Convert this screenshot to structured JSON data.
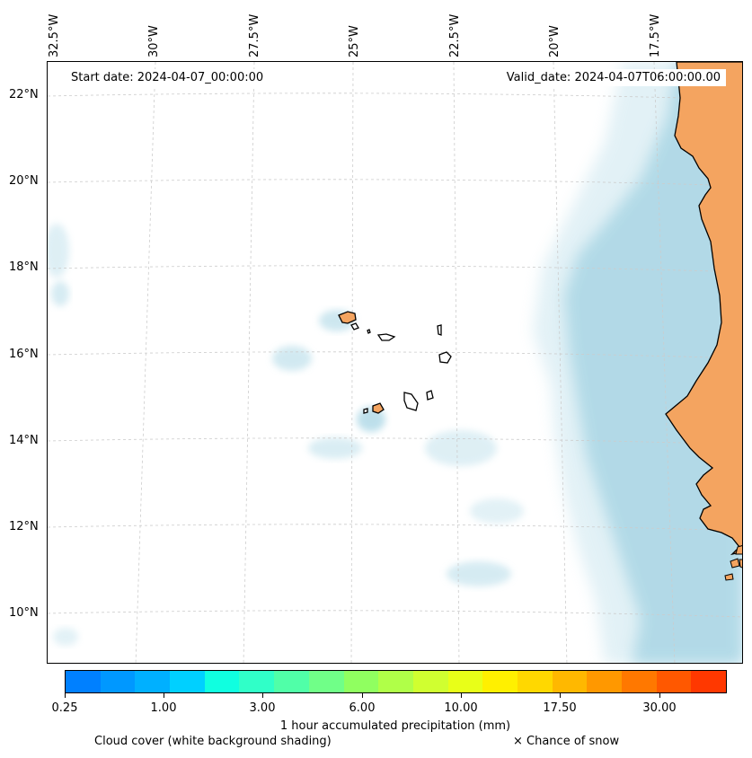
{
  "map": {
    "start_date": "Start date: 2024-04-07_00:00:00",
    "valid_date": "Valid_date: 2024-04-07T06:00:00.00",
    "longitude_labels": [
      "32.5°W",
      "30°W",
      "27.5°W",
      "25°W",
      "22.5°W",
      "20°W",
      "17.5°W"
    ],
    "latitude_labels": [
      "22°N",
      "20°N",
      "18°N",
      "16°N",
      "14°N",
      "12°N",
      "10°N"
    ],
    "region": "Cabo Verde islands and West African coast"
  },
  "colorbar": {
    "title": "1 hour accumulated precipitation (mm)",
    "tick_labels": [
      "0.25",
      "1.00",
      "3.00",
      "6.00",
      "10.00",
      "17.50",
      "30.00"
    ],
    "colors": [
      "#0080ff",
      "#0098ff",
      "#00b0ff",
      "#00d0ff",
      "#10ffe0",
      "#30ffc8",
      "#50ffa8",
      "#70ff88",
      "#90ff60",
      "#b0ff48",
      "#d0ff30",
      "#e8ff18",
      "#fff000",
      "#ffd800",
      "#ffb800",
      "#ff9800",
      "#ff7800",
      "#ff5800",
      "#ff3800"
    ]
  },
  "legend": {
    "cloud_cover": "Cloud cover (white background shading)",
    "snow": "× Chance of snow"
  },
  "colors": {
    "land": "#f4a460",
    "cloud": "#add8e6",
    "grid": "#cccccc"
  }
}
